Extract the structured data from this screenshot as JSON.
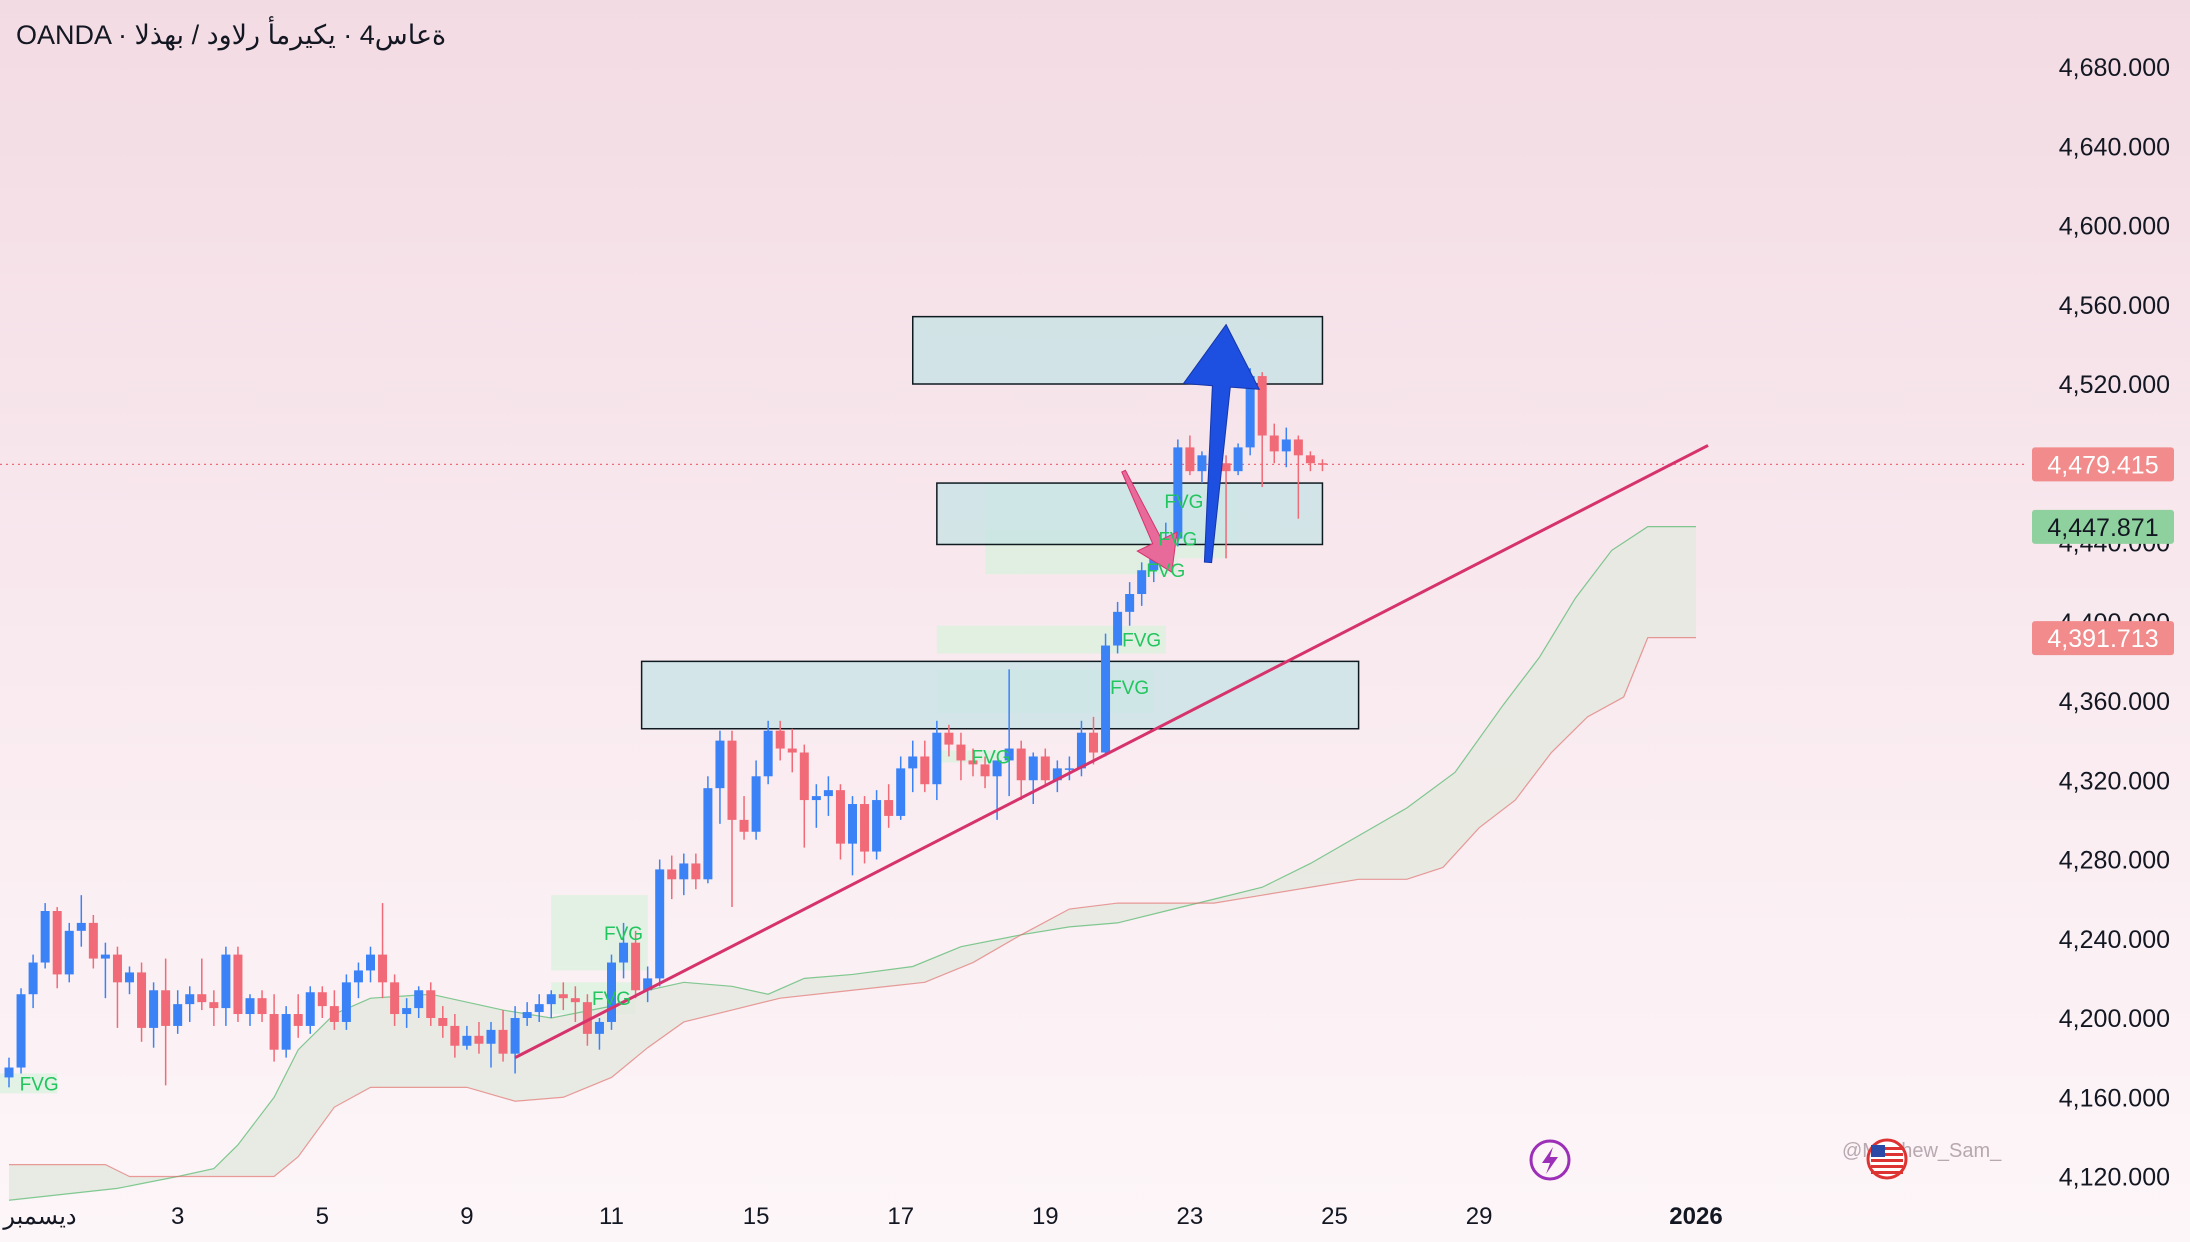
{
  "header": {
    "symbol_line": "OANDA · ةعاس4 · يكيرمأ رلاود / بهذلا"
  },
  "chart_data": {
    "type": "candlestick",
    "title": "",
    "ylim": [
      4110,
      4700
    ],
    "y_ticks": [
      "4,680.000",
      "4,640.000",
      "4,600.000",
      "4,560.000",
      "4,520.000",
      "4,480.000",
      "4,440.000",
      "4,400.000",
      "4,360.000",
      "4,320.000",
      "4,280.000",
      "4,240.000",
      "4,200.000",
      "4,160.000",
      "4,120.000"
    ],
    "y_tick_values": [
      4680,
      4640,
      4600,
      4560,
      4520,
      4480,
      4440,
      4400,
      4360,
      4320,
      4280,
      4240,
      4200,
      4160,
      4120
    ],
    "x_ticks": [
      {
        "label": "ديسمبر",
        "bar": 2
      },
      {
        "label": "3",
        "bar": 14
      },
      {
        "label": "5",
        "bar": 26
      },
      {
        "label": "9",
        "bar": 38
      },
      {
        "label": "11",
        "bar": 50
      },
      {
        "label": "15",
        "bar": 62
      },
      {
        "label": "17",
        "bar": 74
      },
      {
        "label": "19",
        "bar": 86
      },
      {
        "label": "23",
        "bar": 98
      },
      {
        "label": "25",
        "bar": 110
      },
      {
        "label": "29",
        "bar": 122
      },
      {
        "label": "2026",
        "bar": 140,
        "bold": true
      }
    ],
    "bar_spacing_px": 12.05,
    "price_labels": [
      {
        "value": 4479.415,
        "text": "4,479.415",
        "color": "#f28b8b"
      },
      {
        "value": 4447.871,
        "text": "4,447.871",
        "color": "#8fd19e"
      },
      {
        "value": 4391.713,
        "text": "4,391.713",
        "color": "#f28b8b"
      }
    ],
    "current_price": 4479.415,
    "candles": [
      [
        4170,
        4180,
        4165,
        4175
      ],
      [
        4175,
        4215,
        4172,
        4212
      ],
      [
        4212,
        4232,
        4205,
        4228
      ],
      [
        4228,
        4258,
        4225,
        4254
      ],
      [
        4254,
        4256,
        4215,
        4222
      ],
      [
        4222,
        4248,
        4218,
        4244
      ],
      [
        4244,
        4262,
        4236,
        4248
      ],
      [
        4248,
        4252,
        4225,
        4230
      ],
      [
        4230,
        4238,
        4210,
        4232
      ],
      [
        4232,
        4236,
        4195,
        4218
      ],
      [
        4218,
        4226,
        4212,
        4223
      ],
      [
        4223,
        4228,
        4188,
        4195
      ],
      [
        4195,
        4218,
        4185,
        4214
      ],
      [
        4214,
        4230,
        4166,
        4196
      ],
      [
        4196,
        4214,
        4192,
        4207
      ],
      [
        4207,
        4216,
        4198,
        4212
      ],
      [
        4212,
        4230,
        4204,
        4208
      ],
      [
        4208,
        4214,
        4196,
        4205
      ],
      [
        4205,
        4236,
        4196,
        4232
      ],
      [
        4232,
        4236,
        4198,
        4202
      ],
      [
        4202,
        4212,
        4196,
        4210
      ],
      [
        4210,
        4214,
        4198,
        4202
      ],
      [
        4202,
        4212,
        4178,
        4184
      ],
      [
        4184,
        4206,
        4180,
        4202
      ],
      [
        4202,
        4212,
        4190,
        4196
      ],
      [
        4196,
        4216,
        4192,
        4213
      ],
      [
        4213,
        4216,
        4200,
        4206
      ],
      [
        4206,
        4214,
        4194,
        4198
      ],
      [
        4198,
        4222,
        4194,
        4218
      ],
      [
        4218,
        4228,
        4210,
        4224
      ],
      [
        4224,
        4236,
        4218,
        4232
      ],
      [
        4232,
        4258,
        4210,
        4218
      ],
      [
        4218,
        4222,
        4196,
        4202
      ],
      [
        4202,
        4210,
        4195,
        4205
      ],
      [
        4205,
        4216,
        4200,
        4214
      ],
      [
        4214,
        4218,
        4196,
        4200
      ],
      [
        4200,
        4206,
        4190,
        4196
      ],
      [
        4196,
        4202,
        4180,
        4186
      ],
      [
        4186,
        4196,
        4184,
        4191
      ],
      [
        4191,
        4198,
        4182,
        4187
      ],
      [
        4187,
        4198,
        4175,
        4194
      ],
      [
        4194,
        4204,
        4178,
        4182
      ],
      [
        4182,
        4206,
        4172,
        4200
      ],
      [
        4200,
        4208,
        4196,
        4203
      ],
      [
        4203,
        4212,
        4198,
        4207
      ],
      [
        4207,
        4214,
        4200,
        4212
      ],
      [
        4212,
        4218,
        4204,
        4210
      ],
      [
        4210,
        4216,
        4198,
        4208
      ],
      [
        4208,
        4212,
        4186,
        4192
      ],
      [
        4192,
        4200,
        4184,
        4198
      ],
      [
        4198,
        4232,
        4194,
        4228
      ],
      [
        4228,
        4248,
        4220,
        4238
      ],
      [
        4238,
        4244,
        4210,
        4214
      ],
      [
        4214,
        4226,
        4208,
        4220
      ],
      [
        4220,
        4280,
        4216,
        4275
      ],
      [
        4275,
        4282,
        4260,
        4270
      ],
      [
        4270,
        4283,
        4262,
        4278
      ],
      [
        4278,
        4283,
        4265,
        4270
      ],
      [
        4270,
        4322,
        4268,
        4316
      ],
      [
        4316,
        4345,
        4298,
        4340
      ],
      [
        4340,
        4345,
        4256,
        4300
      ],
      [
        4300,
        4312,
        4290,
        4294
      ],
      [
        4294,
        4330,
        4290,
        4322
      ],
      [
        4322,
        4350,
        4318,
        4345
      ],
      [
        4345,
        4350,
        4330,
        4336
      ],
      [
        4336,
        4346,
        4324,
        4334
      ],
      [
        4334,
        4338,
        4286,
        4310
      ],
      [
        4310,
        4318,
        4296,
        4312
      ],
      [
        4312,
        4322,
        4302,
        4315
      ],
      [
        4315,
        4318,
        4280,
        4288
      ],
      [
        4288,
        4312,
        4272,
        4308
      ],
      [
        4308,
        4312,
        4278,
        4284
      ],
      [
        4284,
        4315,
        4280,
        4310
      ],
      [
        4310,
        4318,
        4296,
        4302
      ],
      [
        4302,
        4332,
        4300,
        4326
      ],
      [
        4326,
        4340,
        4314,
        4332
      ],
      [
        4332,
        4340,
        4314,
        4318
      ],
      [
        4318,
        4350,
        4310,
        4344
      ],
      [
        4344,
        4348,
        4332,
        4338
      ],
      [
        4338,
        4344,
        4320,
        4330
      ],
      [
        4330,
        4336,
        4322,
        4328
      ],
      [
        4328,
        4332,
        4316,
        4322
      ],
      [
        4322,
        4328,
        4300,
        4330
      ],
      [
        4330,
        4376,
        4312,
        4336
      ],
      [
        4336,
        4340,
        4310,
        4320
      ],
      [
        4320,
        4334,
        4308,
        4332
      ],
      [
        4332,
        4336,
        4318,
        4320
      ],
      [
        4320,
        4330,
        4314,
        4326
      ],
      [
        4326,
        4332,
        4320,
        4326
      ],
      [
        4326,
        4350,
        4322,
        4344
      ],
      [
        4344,
        4352,
        4328,
        4334
      ],
      [
        4334,
        4394,
        4332,
        4388
      ],
      [
        4388,
        4410,
        4384,
        4405
      ],
      [
        4405,
        4420,
        4398,
        4414
      ],
      [
        4414,
        4430,
        4408,
        4426
      ],
      [
        4426,
        4440,
        4420,
        4436
      ],
      [
        4436,
        4450,
        4430,
        4442
      ],
      [
        4442,
        4492,
        4438,
        4488
      ],
      [
        4488,
        4494,
        4474,
        4476
      ],
      [
        4476,
        4486,
        4470,
        4484
      ],
      [
        4484,
        4496,
        4476,
        4480
      ],
      [
        4480,
        4484,
        4432,
        4476
      ],
      [
        4476,
        4490,
        4474,
        4488
      ],
      [
        4488,
        4528,
        4484,
        4524
      ],
      [
        4524,
        4526,
        4468,
        4494
      ],
      [
        4494,
        4500,
        4480,
        4486
      ],
      [
        4486,
        4498,
        4478,
        4492
      ],
      [
        4492,
        4494,
        4452,
        4484
      ],
      [
        4484,
        4486,
        4476,
        4480
      ],
      [
        4480,
        4482,
        4476,
        4479.4
      ]
    ],
    "cloud_upper": [
      [
        0,
        4108
      ],
      [
        9,
        4114
      ],
      [
        14,
        4120
      ],
      [
        17,
        4124
      ],
      [
        19,
        4136
      ],
      [
        22,
        4160
      ],
      [
        24,
        4184
      ],
      [
        27,
        4202
      ],
      [
        30,
        4210
      ],
      [
        35,
        4212
      ],
      [
        41,
        4204
      ],
      [
        45,
        4200
      ],
      [
        50,
        4206
      ],
      [
        53,
        4214
      ],
      [
        56,
        4218
      ],
      [
        60,
        4216
      ],
      [
        63,
        4212
      ],
      [
        66,
        4220
      ],
      [
        70,
        4222
      ],
      [
        75,
        4226
      ],
      [
        79,
        4236
      ],
      [
        84,
        4242
      ],
      [
        88,
        4246
      ],
      [
        92,
        4248
      ],
      [
        96,
        4254
      ],
      [
        100,
        4260
      ],
      [
        104,
        4266
      ],
      [
        108,
        4278
      ],
      [
        112,
        4292
      ],
      [
        116,
        4306
      ],
      [
        120,
        4324
      ],
      [
        124,
        4358
      ],
      [
        127,
        4382
      ],
      [
        130,
        4412
      ],
      [
        133,
        4436
      ],
      [
        136,
        4448
      ],
      [
        140,
        4448
      ]
    ],
    "cloud_lower": [
      [
        0,
        4126
      ],
      [
        8,
        4126
      ],
      [
        10,
        4120
      ],
      [
        14,
        4120
      ],
      [
        18,
        4120
      ],
      [
        22,
        4120
      ],
      [
        24,
        4130
      ],
      [
        27,
        4155
      ],
      [
        30,
        4165
      ],
      [
        34,
        4165
      ],
      [
        38,
        4165
      ],
      [
        42,
        4158
      ],
      [
        46,
        4160
      ],
      [
        50,
        4170
      ],
      [
        53,
        4185
      ],
      [
        56,
        4198
      ],
      [
        60,
        4204
      ],
      [
        64,
        4210
      ],
      [
        70,
        4214
      ],
      [
        76,
        4218
      ],
      [
        80,
        4228
      ],
      [
        84,
        4242
      ],
      [
        88,
        4255
      ],
      [
        92,
        4258
      ],
      [
        96,
        4258
      ],
      [
        100,
        4258
      ],
      [
        104,
        4262
      ],
      [
        108,
        4266
      ],
      [
        112,
        4270
      ],
      [
        116,
        4270
      ],
      [
        119,
        4276
      ],
      [
        122,
        4296
      ],
      [
        125,
        4310
      ],
      [
        128,
        4334
      ],
      [
        131,
        4352
      ],
      [
        134,
        4362
      ],
      [
        136,
        4392
      ],
      [
        140,
        4392
      ]
    ],
    "trendline": {
      "from": [
        42,
        4180
      ],
      "to": [
        141,
        4489
      ],
      "color": "#d6336c"
    },
    "zones": [
      {
        "bar_from": 75,
        "bar_to": 109,
        "top": 4554,
        "bottom": 4520
      },
      {
        "bar_from": 77,
        "bar_to": 109,
        "top": 4470,
        "bottom": 4439
      },
      {
        "bar_from": 52.5,
        "bar_to": 112,
        "top": 4380,
        "bottom": 4346
      }
    ],
    "fvg": [
      {
        "bar_from": -1,
        "bar_to": 4,
        "top": 4172,
        "bottom": 4162,
        "label_bar": 2.5,
        "label_value": 4167
      },
      {
        "bar_from": 45,
        "bar_to": 53,
        "top": 4262,
        "bottom": 4224,
        "label_bar": 51,
        "label_value": 4243
      },
      {
        "bar_from": 45,
        "bar_to": 52,
        "top": 4218,
        "bottom": 4202,
        "label_bar": 50,
        "label_value": 4210
      },
      {
        "bar_from": 81,
        "bar_to": 102,
        "top": 4470,
        "bottom": 4440,
        "label_bar": 97.5,
        "label_value": 4461
      },
      {
        "bar_from": 81,
        "bar_to": 101,
        "top": 4446,
        "bottom": 4432,
        "label_bar": 97,
        "label_value": 4442
      },
      {
        "bar_from": 81,
        "bar_to": 97,
        "top": 4432,
        "bottom": 4424,
        "label_bar": 96,
        "label_value": 4426
      },
      {
        "bar_from": 77,
        "bar_to": 96,
        "top": 4398,
        "bottom": 4384,
        "label_bar": 94,
        "label_value": 4391
      },
      {
        "bar_from": 77,
        "bar_to": 95,
        "top": 4376,
        "bottom": 4354,
        "label_bar": 93,
        "label_value": 4367
      },
      {
        "bar_from": 77,
        "bar_to": 83,
        "top": 4335,
        "bottom": 4329,
        "label_bar": 81.5,
        "label_value": 4332
      }
    ],
    "arrows": [
      {
        "color": "#e86a9a",
        "from": [
          92.5,
          4476
        ],
        "to": [
          96.5,
          4425
        ]
      },
      {
        "color": "#1d4fe0",
        "from": [
          99.5,
          4430
        ],
        "to": [
          101,
          4550
        ]
      }
    ],
    "fvg_label": "FVG",
    "watermark": "@Matthew_Sam_",
    "colors": {
      "up": "#3b82f6",
      "down": "#f06a77",
      "cloud_upper": "#22a845",
      "cloud_lower": "#e0605f",
      "zone_fill": "#c8e3e6"
    }
  }
}
